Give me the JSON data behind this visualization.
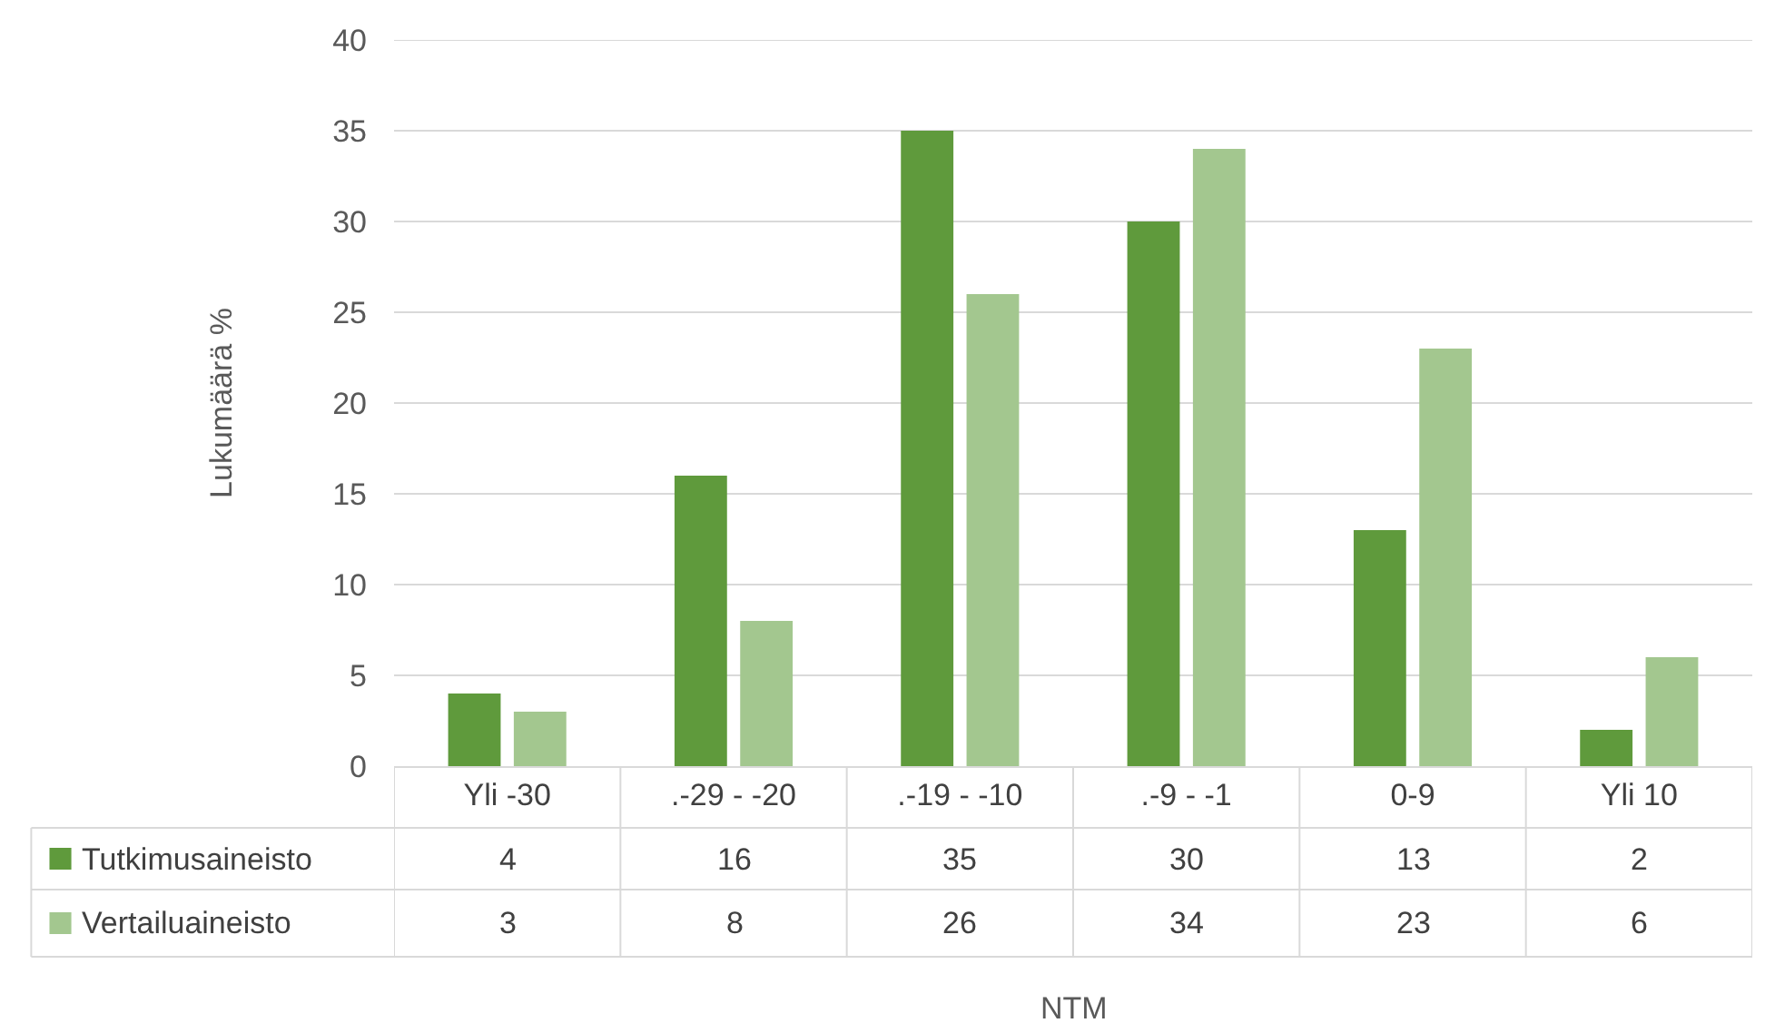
{
  "chart_data": {
    "type": "bar",
    "annotations": [
      "NTM"
    ],
    "ylabel": "Lukumäärä %",
    "categories": [
      "Yli -30",
      ".-29 - -20",
      ".-19 - -10",
      ".-9 - -1",
      "0-9",
      "Yli 10"
    ],
    "series": [
      {
        "name": "Tutkimusaineisto",
        "color": "#5f9a3c",
        "values": [
          4,
          16,
          35,
          30,
          13,
          2
        ]
      },
      {
        "name": "Vertailuaineisto",
        "color": "#a3c78f",
        "values": [
          3,
          8,
          26,
          34,
          23,
          6
        ]
      }
    ],
    "ylim": [
      0,
      40
    ],
    "yticks": [
      0,
      5,
      10,
      15,
      20,
      25,
      30,
      35,
      40
    ],
    "grid": "y",
    "legend": "bottom",
    "data_labels": true
  }
}
